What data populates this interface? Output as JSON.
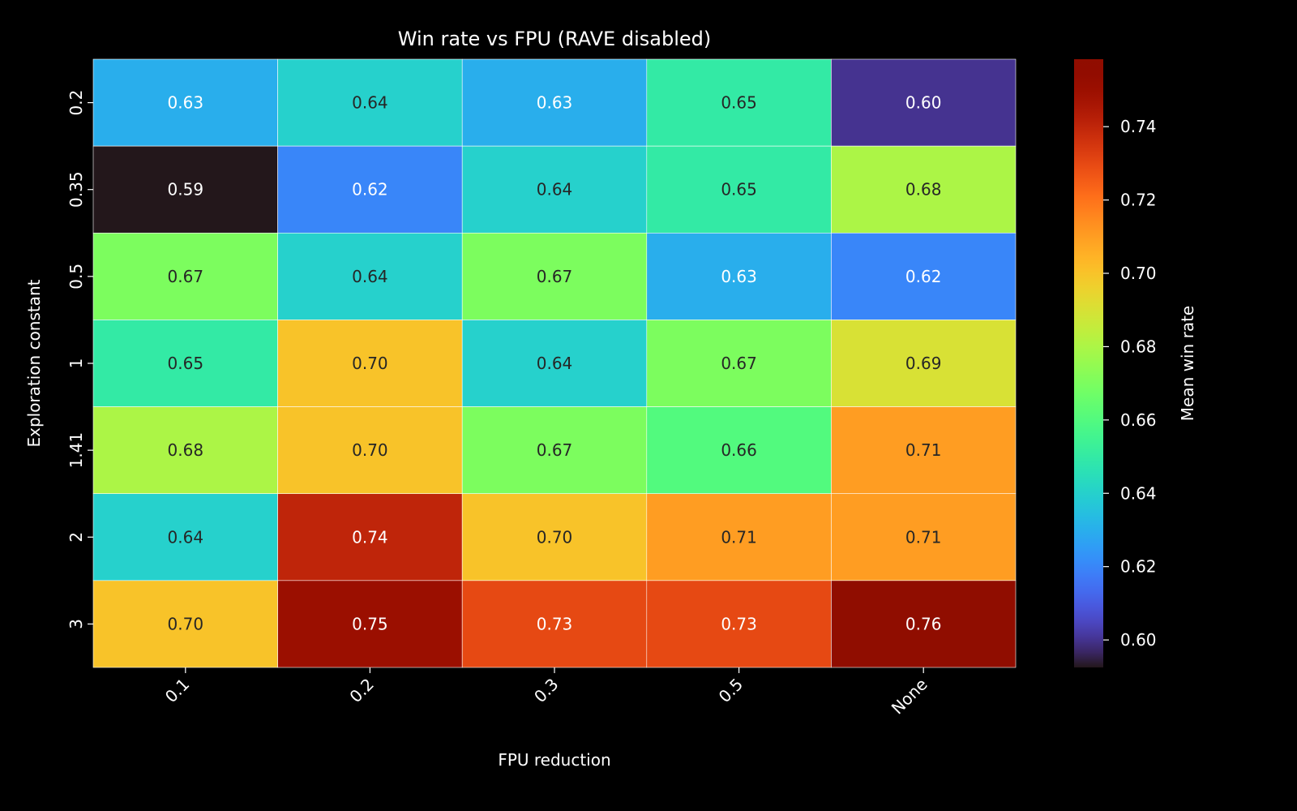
{
  "chart_data": {
    "type": "heatmap",
    "title": "Win rate vs FPU (RAVE disabled)",
    "xlabel": "FPU reduction",
    "ylabel": "Exploration constant",
    "x_categories": [
      "0.1",
      "0.2",
      "0.3",
      "0.5",
      "None"
    ],
    "y_categories": [
      "0.2",
      "0.35",
      "0.5",
      "1",
      "1.41",
      "2",
      "3"
    ],
    "values": [
      [
        0.63,
        0.64,
        0.63,
        0.65,
        0.6
      ],
      [
        0.59,
        0.62,
        0.64,
        0.65,
        0.68
      ],
      [
        0.67,
        0.64,
        0.67,
        0.63,
        0.62
      ],
      [
        0.65,
        0.7,
        0.64,
        0.67,
        0.69
      ],
      [
        0.68,
        0.7,
        0.67,
        0.66,
        0.71
      ],
      [
        0.64,
        0.74,
        0.7,
        0.71,
        0.71
      ],
      [
        0.7,
        0.75,
        0.73,
        0.73,
        0.76
      ]
    ],
    "colormap": "turbo",
    "colorbar": {
      "label": "Mean win rate",
      "range": [
        0.5925,
        0.7584
      ],
      "ticks": [
        "0.60",
        "0.62",
        "0.64",
        "0.66",
        "0.68",
        "0.70",
        "0.72",
        "0.74"
      ]
    },
    "annotations": true,
    "background": "#000000"
  }
}
